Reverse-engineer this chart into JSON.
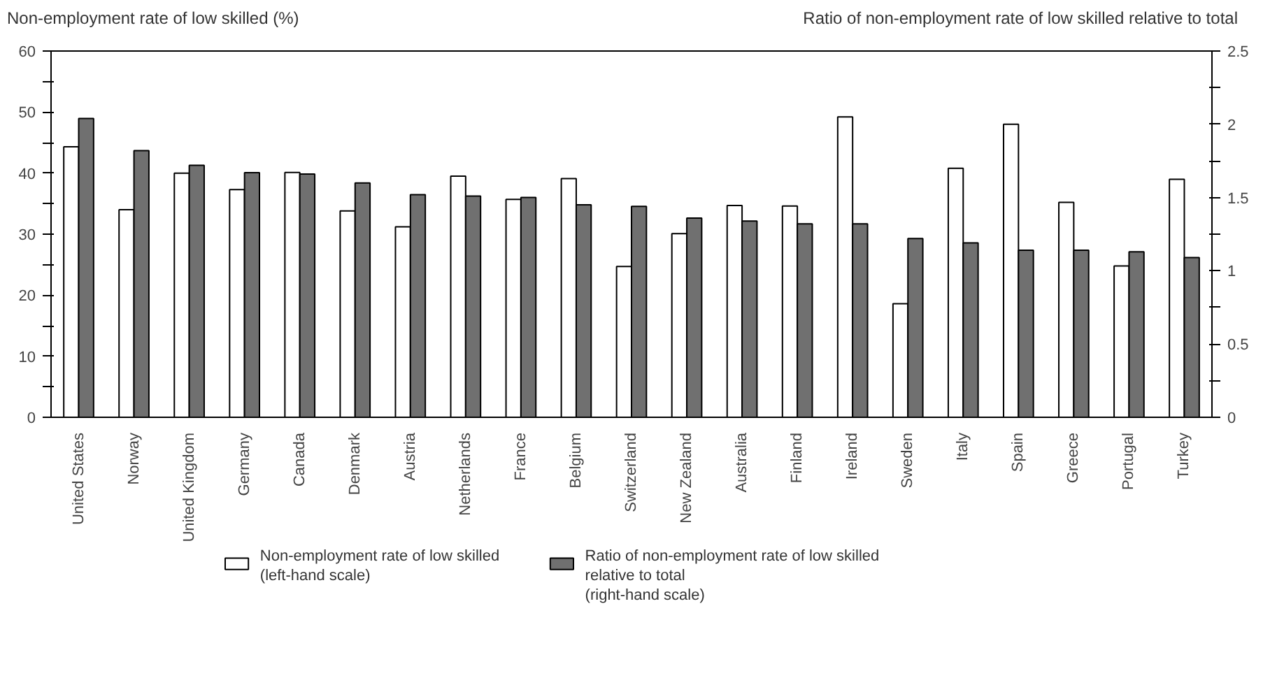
{
  "chart_data": {
    "type": "bar",
    "ylabel": "Non-employment rate of low skilled (%)",
    "y2label": "Ratio of non-employment rate of low skilled relative to total",
    "categories": [
      "United States",
      "Norway",
      "United Kingdom",
      "Germany",
      "Canada",
      "Denmark",
      "Austria",
      "Netherlands",
      "France",
      "Belgium",
      "Switzerland",
      "New Zealand",
      "Australia",
      "Finland",
      "Ireland",
      "Sweden",
      "Italy",
      "Spain",
      "Greece",
      "Portugal",
      "Turkey"
    ],
    "series": [
      {
        "name": "Non-employment rate of low skilled\n(left-hand scale)",
        "color": "#ffffff",
        "values": [
          44.3,
          34,
          40,
          37.3,
          40.1,
          33.8,
          31.2,
          39.5,
          35.7,
          39.1,
          24.7,
          30.1,
          34.7,
          34.6,
          49.2,
          18.6,
          40.8,
          48,
          35.2,
          24.8,
          39
        ]
      },
      {
        "name": "Ratio of non-employment rate of low skilled\nrelative to total\n(right-hand scale)",
        "color": "#707070",
        "axis": "y2",
        "values": [
          2.04,
          1.82,
          1.72,
          1.67,
          1.66,
          1.6,
          1.52,
          1.51,
          1.5,
          1.45,
          1.44,
          1.36,
          1.34,
          1.32,
          1.32,
          1.22,
          1.19,
          1.14,
          1.14,
          1.13,
          1.09
        ]
      }
    ],
    "ylim": [
      0,
      60
    ],
    "yticks": [
      0,
      {
        "value": 5,
        "label": null
      },
      10,
      {
        "value": 15,
        "label": null
      },
      20,
      {
        "value": 25,
        "label": null
      },
      30,
      {
        "value": 35,
        "label": null
      },
      40,
      {
        "value": 45,
        "label": null
      },
      50,
      {
        "value": 55,
        "label": null
      },
      60
    ],
    "y2lim": [
      0,
      2.5
    ],
    "y2ticks": [
      0,
      {
        "value": 0.25,
        "label": null
      },
      0.5,
      {
        "value": 0.75,
        "label": null
      },
      1,
      {
        "value": 1.25,
        "label": null
      },
      1.5,
      {
        "value": 1.75,
        "label": null
      },
      2,
      {
        "value": 2.25,
        "label": null
      },
      2.5
    ],
    "grid": false,
    "legend": "bottom"
  }
}
